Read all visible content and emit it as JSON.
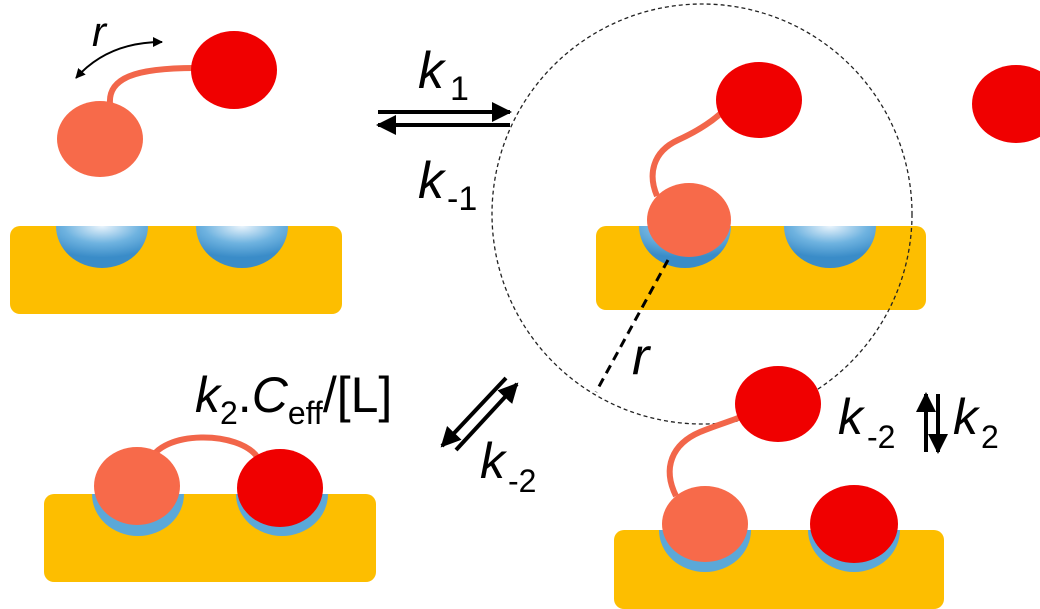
{
  "colors": {
    "surface": "#FDBE00",
    "pocket": "#5BA8D8",
    "ligand_dark": "#F00000",
    "ligand_light": "#F76A4A",
    "linker": "#F2664A",
    "arrow": "#000000"
  },
  "labels": {
    "r_top": "r",
    "k1_main": "k",
    "k1_sub": "1",
    "km1_main": "k",
    "km1_sub": "-1",
    "r_radius": "r",
    "k2ceff_k": "k",
    "k2ceff_sub2": "2",
    "k2ceff_dot": ".",
    "k2ceff_C": "C",
    "k2ceff_eff": "eff",
    "k2ceff_tail": "/[L]",
    "km2_left_main": "k",
    "km2_left_sub": "-2",
    "km2_right_main": "k",
    "km2_right_sub": "-2",
    "k2_right_main": "k",
    "k2_right_sub": "2"
  }
}
